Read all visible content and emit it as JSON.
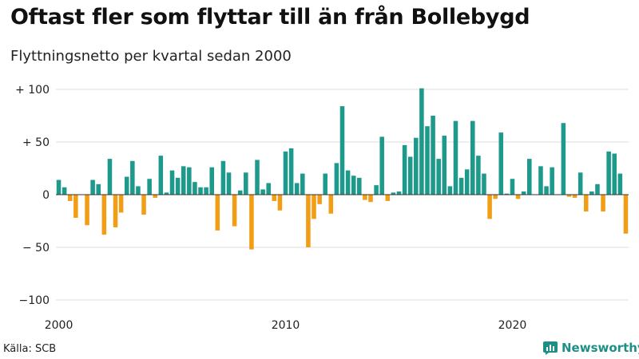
{
  "title": "Oftast fler som flyttar till än från Bollebygd",
  "subtitle": "Flyttningsnetto per kvartal sedan 2000",
  "source": "Källa: SCB",
  "brand": "Newsworthy",
  "colors": {
    "positive": "#1d9a8c",
    "negative": "#f29d16",
    "grid": "#dddddd",
    "zero": "#333333",
    "brand": "#1e8f86"
  },
  "icons": {
    "brand": "bar-chart-bubble-icon"
  },
  "chart_data": {
    "type": "bar",
    "x_start": "2000 Q1",
    "frequency": "quarterly",
    "ylim": [
      -100,
      100
    ],
    "yticks": [
      {
        "value": 100,
        "label": "+ 100"
      },
      {
        "value": 50,
        "label": "+  50"
      },
      {
        "value": 0,
        "label": "0"
      },
      {
        "value": -50,
        "label": "− 50"
      },
      {
        "value": -100,
        "label": "−100"
      }
    ],
    "xticks": [
      {
        "index": 0,
        "label": "2000"
      },
      {
        "index": 40,
        "label": "2010"
      },
      {
        "index": 80,
        "label": "2020"
      }
    ],
    "grid": true,
    "values": [
      14,
      7,
      -6,
      -22,
      0,
      -29,
      14,
      10,
      -38,
      34,
      -31,
      -17,
      17,
      32,
      8,
      -19,
      15,
      -3,
      37,
      2,
      23,
      16,
      27,
      26,
      12,
      7,
      7,
      26,
      -34,
      32,
      21,
      -30,
      4,
      21,
      -52,
      33,
      5,
      11,
      -6,
      -15,
      41,
      44,
      11,
      20,
      -50,
      -23,
      -9,
      20,
      -18,
      30,
      84,
      23,
      18,
      16,
      -5,
      -7,
      9,
      55,
      -6,
      2,
      3,
      47,
      36,
      54,
      101,
      65,
      75,
      34,
      56,
      8,
      70,
      16,
      24,
      70,
      37,
      20,
      -23,
      -4,
      59,
      1,
      15,
      -4,
      3,
      34,
      0,
      27,
      8,
      26,
      0,
      68,
      -2,
      -3,
      21,
      -16,
      3,
      10,
      -16,
      41,
      39,
      20,
      -37
    ]
  }
}
